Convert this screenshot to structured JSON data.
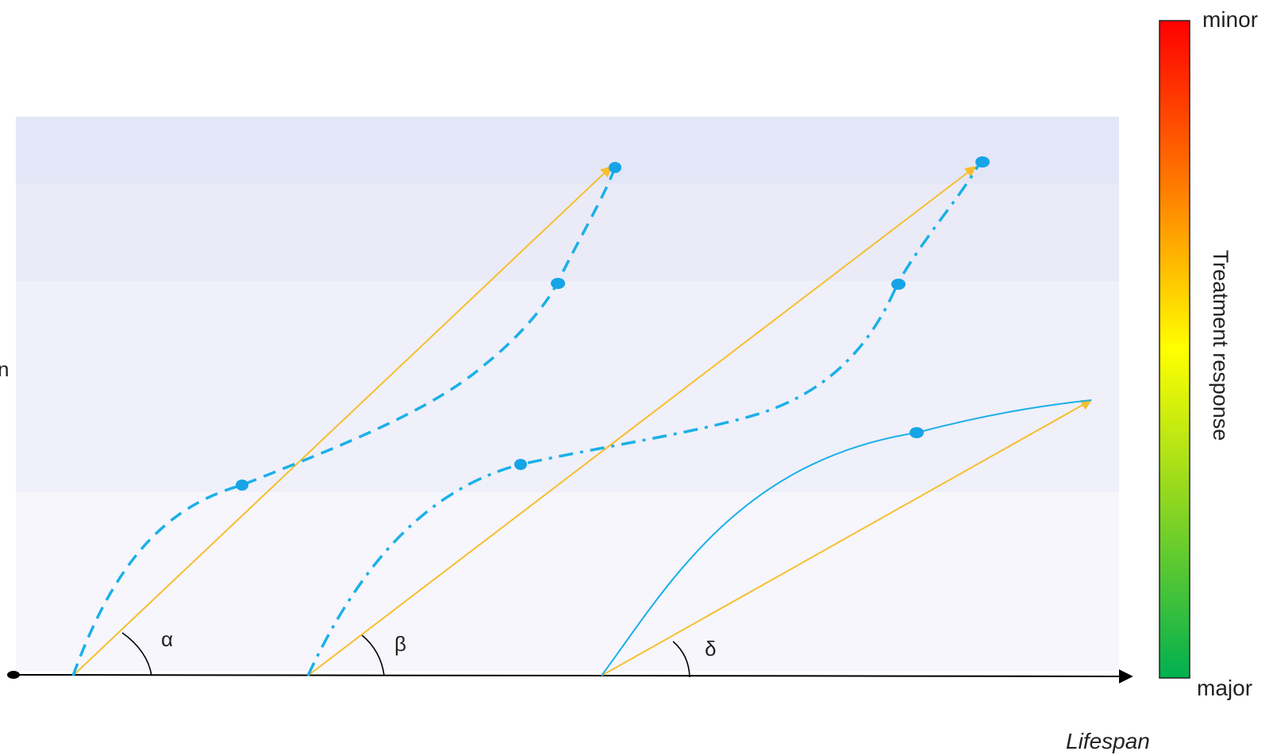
{
  "labels": {
    "x_axis": "Lifespan",
    "left_edge_fragment": "n",
    "colorbar_title": "Treatment response",
    "colorbar_top": "minor",
    "colorbar_bottom": "major",
    "angles": [
      "α",
      "β",
      "δ"
    ]
  },
  "colors": {
    "band_top": "#e3e6f6",
    "band_upper": "#eaebf7",
    "band_middle": "#eff0f9",
    "band_lower": "#f6f6fc",
    "arrow": "#f7be2e",
    "curve": "#1bb0e8",
    "point": "#16a4e6",
    "axis": "#000000",
    "colorbar_top": "#ff0000",
    "colorbar_bottom": "#00b050"
  },
  "curves": [
    {
      "style": "dashed",
      "angle_label": "α"
    },
    {
      "style": "dash-dot",
      "angle_label": "β"
    },
    {
      "style": "solid",
      "angle_label": "δ"
    }
  ]
}
